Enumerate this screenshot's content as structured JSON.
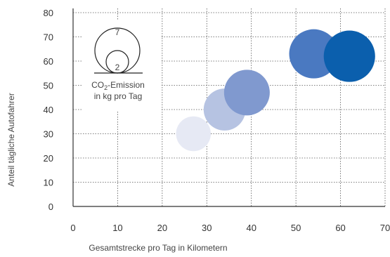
{
  "chart_data": {
    "type": "bubble",
    "xlabel": "Gesamtstrecke pro Tag in Kilometern",
    "ylabel": "Anteil tägliche Autofahrer",
    "xlim": [
      0,
      70
    ],
    "ylim": [
      0,
      80
    ],
    "xticks": [
      "0",
      "10",
      "20",
      "30",
      "40",
      "50",
      "60",
      "70"
    ],
    "yticks": [
      "0",
      "10",
      "20",
      "30",
      "40",
      "50",
      "60",
      "70",
      "80"
    ],
    "grid": true,
    "points": [
      {
        "x": 27,
        "y": 30,
        "size": 2.2,
        "color": "#e6e9f4"
      },
      {
        "x": 34,
        "y": 40,
        "size": 3.2,
        "color": "#b6c3e2"
      },
      {
        "x": 39,
        "y": 47,
        "size": 3.8,
        "color": "#8099cf"
      },
      {
        "x": 54,
        "y": 63,
        "size": 4.4,
        "color": "#4a79c1"
      },
      {
        "x": 62,
        "y": 62,
        "size": 4.8,
        "color": "#0b5fad"
      }
    ],
    "legend": {
      "position": "top-left",
      "large_label": "7",
      "small_label": "2",
      "caption_line1_pre": "CO",
      "caption_line1_sub": "2",
      "caption_line1_post": "-Emission",
      "caption_line2": "in kg pro Tag"
    }
  }
}
